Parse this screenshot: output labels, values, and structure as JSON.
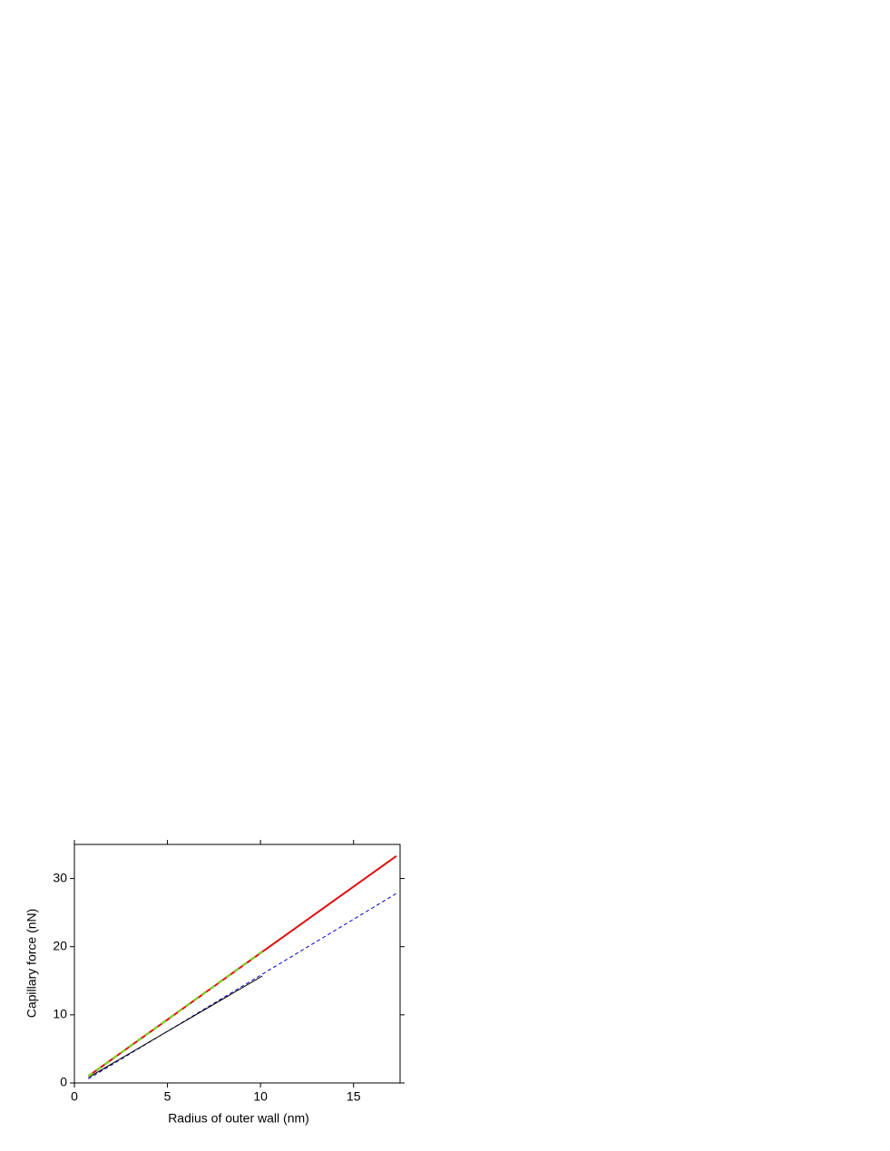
{
  "chart_data": {
    "type": "line",
    "xlabel": "Radius of outer wall (nm)",
    "ylabel": "Capillary force (nN)",
    "xlim": [
      0,
      17.5
    ],
    "xticks": [
      0,
      5,
      10,
      15
    ],
    "ylim": [
      0,
      35
    ],
    "yticks": [
      0,
      10,
      20,
      30
    ],
    "series": [
      {
        "color": "#0000cc",
        "dash": "4,3",
        "width": 1,
        "x": [
          0.75,
          17.3
        ],
        "values": [
          0.6,
          27.8
        ]
      },
      {
        "color": "#000000",
        "dash": "",
        "width": 1,
        "x": [
          0.75,
          10.1
        ],
        "values": [
          0.8,
          15.7
        ]
      },
      {
        "color": "#e01010",
        "dash": "",
        "width": 2,
        "x": [
          0.75,
          17.3
        ],
        "values": [
          1.0,
          33.3
        ]
      },
      {
        "color": "#88cc33",
        "dash": "6,5",
        "width": 2.5,
        "x": [
          0.75,
          10.1
        ],
        "values": [
          1.0,
          19.3
        ]
      }
    ]
  }
}
